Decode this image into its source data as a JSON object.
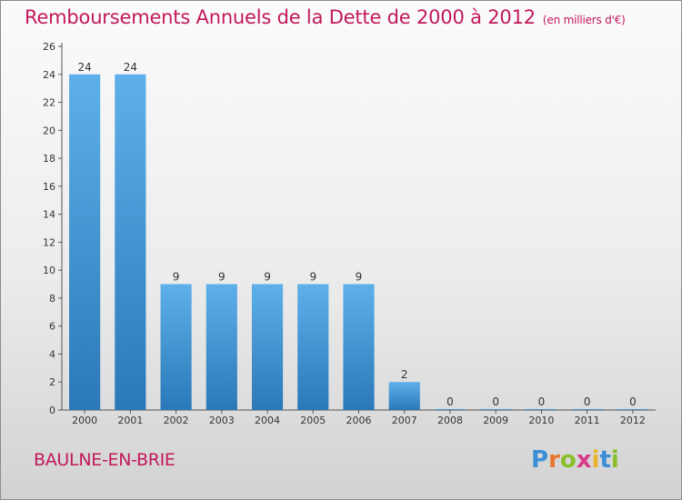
{
  "header": {
    "title": "Remboursements Annuels de la Dette de 2000 à 2012",
    "unit": "(en milliers d'€)"
  },
  "footer": {
    "commune": "BAULNE-EN-BRIE",
    "logo": "Proxiti"
  },
  "colors": {
    "bar": "#3d94d6",
    "title": "#c2185b"
  },
  "chart_data": {
    "type": "bar",
    "title": "Remboursements Annuels de la Dette de 2000 à 2012",
    "subtitle": "(en milliers d'€)",
    "categories": [
      "2000",
      "2001",
      "2002",
      "2003",
      "2004",
      "2005",
      "2006",
      "2007",
      "2008",
      "2009",
      "2010",
      "2011",
      "2012"
    ],
    "values": [
      24,
      24,
      9,
      9,
      9,
      9,
      9,
      2,
      0,
      0,
      0,
      0,
      0
    ],
    "ylim": [
      0,
      26
    ],
    "yticks": [
      0,
      2,
      4,
      6,
      8,
      10,
      12,
      14,
      16,
      18,
      20,
      22,
      24,
      26
    ],
    "grid": false,
    "xlabel": "",
    "ylabel": ""
  }
}
